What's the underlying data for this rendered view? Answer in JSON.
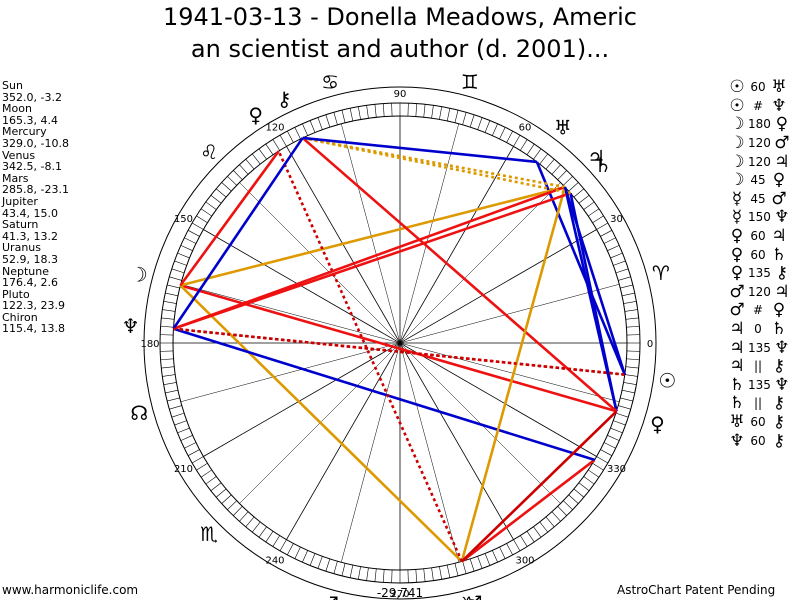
{
  "title_lines": [
    "1941-03-13 - Donella Meadows, Americ",
    "an scientist and author (d. 2001)..."
  ],
  "planets": [
    {
      "name": "Sun",
      "value": "352.0, -3.2"
    },
    {
      "name": "Moon",
      "value": "165.3, 4.4"
    },
    {
      "name": "Mercury",
      "value": "329.0, -10.8"
    },
    {
      "name": "Venus",
      "value": "342.5, -8.1"
    },
    {
      "name": "Mars",
      "value": "285.8, -23.1"
    },
    {
      "name": "Jupiter",
      "value": "43.4, 15.0"
    },
    {
      "name": "Saturn",
      "value": "41.3, 13.2"
    },
    {
      "name": "Uranus",
      "value": "52.9, 18.3"
    },
    {
      "name": "Neptune",
      "value": "176.4, 2.6"
    },
    {
      "name": "Pluto",
      "value": "122.3, 23.9"
    },
    {
      "name": "Chiron",
      "value": "115.4, 13.8"
    }
  ],
  "aspects": [
    {
      "p1": "☉",
      "angle": "60",
      "p2": "♅",
      "p1_name": "sun",
      "p2_name": "uranus"
    },
    {
      "p1": "☉",
      "angle": "#",
      "p2": "♆",
      "p1_name": "sun",
      "p2_name": "neptune"
    },
    {
      "p1": "☽",
      "angle": "180",
      "p2": "♀",
      "p1_name": "moon",
      "p2_name": "venus"
    },
    {
      "p1": "☽",
      "angle": "120",
      "p2": "♂",
      "p1_name": "moon",
      "p2_name": "mars"
    },
    {
      "p1": "☽",
      "angle": "120",
      "p2": "♃",
      "p1_name": "moon",
      "p2_name": "jupiter"
    },
    {
      "p1": "☽",
      "angle": "45",
      "p2": "♀",
      "p1_name": "moon",
      "p2_name": "pluto"
    },
    {
      "p1": "☿",
      "angle": "45",
      "p2": "♂",
      "p1_name": "mercury",
      "p2_name": "mars"
    },
    {
      "p1": "☿",
      "angle": "150",
      "p2": "♆",
      "p1_name": "mercury",
      "p2_name": "neptune"
    },
    {
      "p1": "♀",
      "angle": "60",
      "p2": "♃",
      "p1_name": "venus",
      "p2_name": "jupiter"
    },
    {
      "p1": "♀",
      "angle": "60",
      "p2": "♄",
      "p1_name": "venus",
      "p2_name": "saturn"
    },
    {
      "p1": "♀",
      "angle": "135",
      "p2": "⚷",
      "p1_name": "venus",
      "p2_name": "chiron"
    },
    {
      "p1": "♂",
      "angle": "120",
      "p2": "♃",
      "p1_name": "mars",
      "p2_name": "jupiter"
    },
    {
      "p1": "♂",
      "angle": "#",
      "p2": "♀",
      "p1_name": "mars",
      "p2_name": "pluto"
    },
    {
      "p1": "♃",
      "angle": "0",
      "p2": "♄",
      "p1_name": "jupiter",
      "p2_name": "saturn"
    },
    {
      "p1": "♃",
      "angle": "135",
      "p2": "♆",
      "p1_name": "jupiter",
      "p2_name": "neptune"
    },
    {
      "p1": "♃",
      "angle": "||",
      "p2": "⚷",
      "p1_name": "jupiter",
      "p2_name": "chiron"
    },
    {
      "p1": "♄",
      "angle": "135",
      "p2": "♆",
      "p1_name": "saturn",
      "p2_name": "neptune"
    },
    {
      "p1": "♄",
      "angle": "||",
      "p2": "⚷",
      "p1_name": "saturn",
      "p2_name": "chiron"
    },
    {
      "p1": "♅",
      "angle": "60",
      "p2": "⚷",
      "p1_name": "uranus",
      "p2_name": "chiron"
    },
    {
      "p1": "♆",
      "angle": "60",
      "p2": "⚷",
      "p1_name": "neptune",
      "p2_name": "chiron"
    }
  ],
  "wheel": {
    "degree_labels": [
      "0",
      "30",
      "60",
      "90",
      "120",
      "150",
      "180",
      "210",
      "240",
      "270",
      "300",
      "330"
    ],
    "center_value": "-29,741",
    "signs": [
      {
        "glyph": "♈",
        "name": "aries",
        "lon": 15
      },
      {
        "glyph": "♊",
        "name": "gemini",
        "lon": 75
      },
      {
        "glyph": "♋",
        "name": "cancer",
        "lon": 105
      },
      {
        "glyph": "♌",
        "name": "leo",
        "lon": 135
      },
      {
        "glyph": "☊",
        "name": "north-node",
        "lon": 195
      },
      {
        "glyph": "♏",
        "name": "scorpio",
        "lon": 225
      },
      {
        "glyph": "♐",
        "name": "sagittarius",
        "lon": 255
      },
      {
        "glyph": "♑",
        "name": "capricorn",
        "lon": 285
      }
    ],
    "planet_glyphs": [
      {
        "glyph": "☉",
        "name": "sun",
        "lon": 352.0
      },
      {
        "glyph": "☽",
        "name": "moon",
        "lon": 165.3
      },
      {
        "glyph": "♀",
        "name": "venus",
        "lon": 342.5
      },
      {
        "glyph": "♂",
        "name": "mars",
        "lon": 285.8
      },
      {
        "glyph": "♃",
        "name": "jupiter",
        "lon": 43.4
      },
      {
        "glyph": "♄",
        "name": "saturn",
        "lon": 41.3
      },
      {
        "glyph": "♅",
        "name": "uranus",
        "lon": 52.9
      },
      {
        "glyph": "♆",
        "name": "neptune",
        "lon": 176.4
      },
      {
        "glyph": "♀",
        "name": "pluto",
        "lon": 122.3
      },
      {
        "glyph": "⚷",
        "name": "chiron",
        "lon": 115.4
      }
    ],
    "aspect_lines": [
      {
        "from": 352.0,
        "to": 52.9,
        "color": "#0000cc",
        "style": "solid"
      },
      {
        "from": 352.0,
        "to": 176.4,
        "color": "#cc0000",
        "style": "dotted"
      },
      {
        "from": 165.3,
        "to": 342.5,
        "color": "#ee1111",
        "style": "solid"
      },
      {
        "from": 165.3,
        "to": 285.8,
        "color": "#dd9900",
        "style": "solid"
      },
      {
        "from": 165.3,
        "to": 43.4,
        "color": "#dd9900",
        "style": "solid"
      },
      {
        "from": 165.3,
        "to": 122.3,
        "color": "#ee1111",
        "style": "solid"
      },
      {
        "from": 329.0,
        "to": 285.8,
        "color": "#ee1111",
        "style": "solid"
      },
      {
        "from": 329.0,
        "to": 176.4,
        "color": "#0000cc",
        "style": "solid"
      },
      {
        "from": 342.5,
        "to": 43.4,
        "color": "#0000cc",
        "style": "solid"
      },
      {
        "from": 342.5,
        "to": 41.3,
        "color": "#0000cc",
        "style": "solid"
      },
      {
        "from": 342.5,
        "to": 115.4,
        "color": "#ee1111",
        "style": "solid"
      },
      {
        "from": 285.8,
        "to": 43.4,
        "color": "#dd9900",
        "style": "solid"
      },
      {
        "from": 285.8,
        "to": 122.3,
        "color": "#cc0000",
        "style": "dotted"
      },
      {
        "from": 43.4,
        "to": 176.4,
        "color": "#ee1111",
        "style": "solid"
      },
      {
        "from": 43.4,
        "to": 115.4,
        "color": "#dd9900",
        "style": "dotted"
      },
      {
        "from": 41.3,
        "to": 176.4,
        "color": "#ee1111",
        "style": "solid"
      },
      {
        "from": 41.3,
        "to": 115.4,
        "color": "#dd9900",
        "style": "dotted"
      },
      {
        "from": 52.9,
        "to": 115.4,
        "color": "#0000cc",
        "style": "solid"
      },
      {
        "from": 176.4,
        "to": 115.4,
        "color": "#0000cc",
        "style": "solid"
      },
      {
        "from": 342.5,
        "to": 285.8,
        "color": "#cc0000",
        "style": "solid"
      },
      {
        "from": 352.0,
        "to": 43.4,
        "color": "#0000cc",
        "style": "solid"
      },
      {
        "from": 176.4,
        "to": 352.0,
        "color": "#cc0000",
        "style": "dotted"
      }
    ]
  },
  "footer": {
    "left": "www.harmoniclife.com",
    "right": "AstroChart Patent Pending"
  },
  "colors": {
    "blue": "#0000cc",
    "red": "#ee1111",
    "gold": "#dd9900"
  }
}
